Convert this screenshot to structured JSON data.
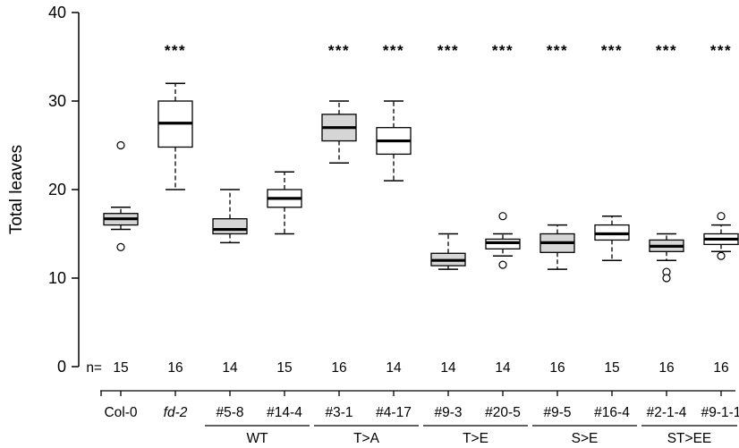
{
  "chart_data": {
    "type": "boxplot",
    "title": "",
    "xlabel": "",
    "ylabel": "Total leaves",
    "ylim": [
      0,
      40
    ],
    "yticks": [
      0,
      10,
      20,
      30,
      40
    ],
    "grid": false,
    "n_prefix": "n=",
    "colors": {
      "gray_fill": "#d6d6d6",
      "white_fill": "#ffffff",
      "stroke": "#000000"
    },
    "boxes": [
      {
        "label": "Col-0",
        "italic": false,
        "n": 15,
        "fill": "gray",
        "sig": "",
        "low": 15.5,
        "q1": 16.0,
        "median": 16.7,
        "q3": 17.3,
        "high": 18,
        "outliers": [
          25,
          13.5
        ]
      },
      {
        "label": "fd-2",
        "italic": true,
        "n": 16,
        "fill": "white",
        "sig": "***",
        "low": 20,
        "q1": 24.8,
        "median": 27.5,
        "q3": 30.0,
        "high": 32,
        "outliers": []
      },
      {
        "label": "#5-8",
        "italic": false,
        "n": 14,
        "fill": "gray",
        "sig": "",
        "low": 14,
        "q1": 15.0,
        "median": 15.5,
        "q3": 16.7,
        "high": 20,
        "outliers": []
      },
      {
        "label": "#14-4",
        "italic": false,
        "n": 15,
        "fill": "white",
        "sig": "",
        "low": 15,
        "q1": 18.0,
        "median": 19.0,
        "q3": 20.0,
        "high": 22,
        "outliers": []
      },
      {
        "label": "#3-1",
        "italic": false,
        "n": 16,
        "fill": "gray",
        "sig": "***",
        "low": 23,
        "q1": 25.5,
        "median": 27.0,
        "q3": 28.5,
        "high": 30,
        "outliers": []
      },
      {
        "label": "#4-17",
        "italic": false,
        "n": 14,
        "fill": "white",
        "sig": "***",
        "low": 21,
        "q1": 24.0,
        "median": 25.5,
        "q3": 27.0,
        "high": 30,
        "outliers": []
      },
      {
        "label": "#9-3",
        "italic": false,
        "n": 14,
        "fill": "gray",
        "sig": "***",
        "low": 11,
        "q1": 11.4,
        "median": 12.0,
        "q3": 12.8,
        "high": 15,
        "outliers": []
      },
      {
        "label": "#20-5",
        "italic": false,
        "n": 14,
        "fill": "white",
        "sig": "***",
        "low": 12.5,
        "q1": 13.3,
        "median": 14.0,
        "q3": 14.4,
        "high": 15,
        "outliers": [
          17,
          11.5
        ]
      },
      {
        "label": "#9-5",
        "italic": false,
        "n": 16,
        "fill": "gray",
        "sig": "***",
        "low": 11,
        "q1": 12.9,
        "median": 14.0,
        "q3": 15.0,
        "high": 16,
        "outliers": []
      },
      {
        "label": "#16-4",
        "italic": false,
        "n": 15,
        "fill": "white",
        "sig": "***",
        "low": 12,
        "q1": 14.3,
        "median": 15.0,
        "q3": 16.0,
        "high": 17,
        "outliers": []
      },
      {
        "label": "#2-1-4",
        "italic": false,
        "n": 16,
        "fill": "gray",
        "sig": "***",
        "low": 12,
        "q1": 13.0,
        "median": 13.6,
        "q3": 14.3,
        "high": 15,
        "outliers": [
          10.7,
          10
        ]
      },
      {
        "label": "#9-1-1",
        "italic": false,
        "n": 16,
        "fill": "white",
        "sig": "***",
        "low": 13,
        "q1": 13.8,
        "median": 14.4,
        "q3": 15.0,
        "high": 16,
        "outliers": [
          17,
          12.5
        ]
      }
    ],
    "groups": [
      {
        "label": "WT",
        "from": 2,
        "to": 3
      },
      {
        "label": "T>A",
        "from": 4,
        "to": 5
      },
      {
        "label": "T>E",
        "from": 6,
        "to": 7
      },
      {
        "label": "S>E",
        "from": 8,
        "to": 9
      },
      {
        "label": "ST>EE",
        "from": 10,
        "to": 11
      }
    ]
  }
}
